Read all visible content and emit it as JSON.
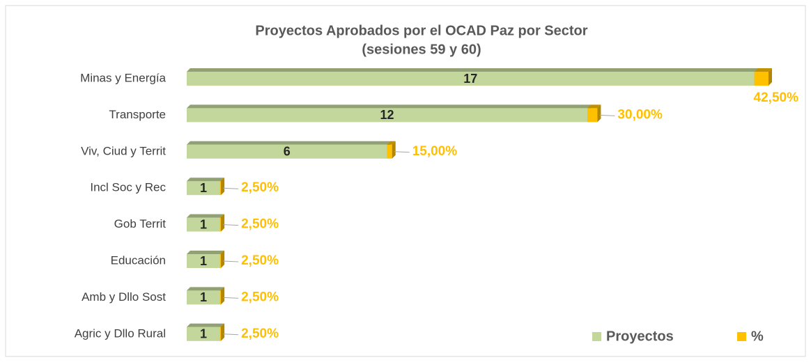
{
  "chart_data": {
    "type": "bar",
    "orientation": "horizontal",
    "stacked": true,
    "title": "Proyectos Aprobados por el OCAD Paz por Sector",
    "subtitle": "(sesiones 59 y 60)",
    "categories": [
      "Minas y Energía",
      "Transporte",
      "Viv, Ciud y Territ",
      "Incl Soc y Rec",
      "Gob Territ",
      "Educación",
      "Amb y Dllo Sost",
      "Agric y Dllo Rural"
    ],
    "series": [
      {
        "name": "Proyectos",
        "color": "#c3d69b",
        "values": [
          17,
          12,
          6,
          1,
          1,
          1,
          1,
          1
        ]
      },
      {
        "name": "%",
        "color": "#ffc000",
        "values": [
          0.425,
          0.3,
          0.15,
          0.025,
          0.025,
          0.025,
          0.025,
          0.025
        ],
        "value_labels": [
          "42,50%",
          "30,00%",
          "15,00%",
          "2,50%",
          "2,50%",
          "2,50%",
          "2,50%",
          "2,50%"
        ]
      }
    ],
    "legend": "bottom-right"
  }
}
